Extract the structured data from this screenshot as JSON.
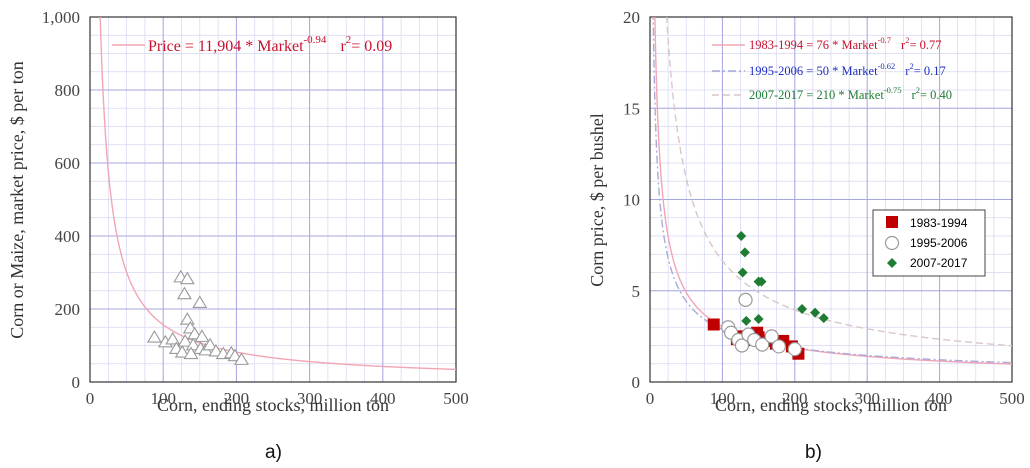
{
  "chart_data": [
    {
      "type": "scatter",
      "panel_label": "a)",
      "xlabel": "Corn, ending stocks, million ton",
      "ylabel": "Corn or Maize, market price, $ per ton",
      "xlim": [
        0,
        500
      ],
      "ylim": [
        0,
        1000
      ],
      "x_ticks": [
        "0",
        "100",
        "200",
        "300",
        "400",
        "500"
      ],
      "y_ticks": [
        "0",
        "200",
        "400",
        "600",
        "800",
        "1,000"
      ],
      "grid": true,
      "series": [
        {
          "marker": "triangle",
          "color": "#999999",
          "points": [
            {
              "x": 88,
              "y": 123
            },
            {
              "x": 103,
              "y": 110
            },
            {
              "x": 113,
              "y": 118
            },
            {
              "x": 118,
              "y": 92
            },
            {
              "x": 124,
              "y": 288
            },
            {
              "x": 129,
              "y": 242
            },
            {
              "x": 133,
              "y": 283
            },
            {
              "x": 130,
              "y": 112
            },
            {
              "x": 126,
              "y": 82
            },
            {
              "x": 133,
              "y": 172
            },
            {
              "x": 137,
              "y": 148
            },
            {
              "x": 141,
              "y": 102
            },
            {
              "x": 143,
              "y": 132
            },
            {
              "x": 150,
              "y": 218
            },
            {
              "x": 153,
              "y": 125
            },
            {
              "x": 151,
              "y": 92
            },
            {
              "x": 158,
              "y": 88
            },
            {
              "x": 164,
              "y": 102
            },
            {
              "x": 172,
              "y": 85
            },
            {
              "x": 182,
              "y": 78
            },
            {
              "x": 193,
              "y": 80
            },
            {
              "x": 198,
              "y": 72
            },
            {
              "x": 207,
              "y": 62
            },
            {
              "x": 138,
              "y": 78
            }
          ]
        }
      ],
      "fit_lines": [
        {
          "label": "Price = 11,904 * Market",
          "exp": "-0.94",
          "r2": "r",
          "r2_sup": "2",
          "r2_rest": "= 0.09",
          "a": 11904,
          "b": -0.94,
          "color": "#c8102e",
          "line_color": "#f2a5b4",
          "dash": "solid"
        }
      ]
    },
    {
      "type": "scatter",
      "panel_label": "b)",
      "xlabel": "Corn, ending stocks, million ton",
      "ylabel": "Corn price, $ per bushel",
      "xlim": [
        0,
        500
      ],
      "ylim": [
        0,
        20
      ],
      "x_ticks": [
        "0",
        "100",
        "200",
        "300",
        "400",
        "500"
      ],
      "y_ticks": [
        "0",
        "5",
        "10",
        "15",
        "20"
      ],
      "grid": true,
      "legend_position": "right-middle",
      "series": [
        {
          "name": "1983-1994",
          "marker": "square",
          "color": "#c00000",
          "points": [
            {
              "x": 88,
              "y": 3.15
            },
            {
              "x": 120,
              "y": 2.35
            },
            {
              "x": 128,
              "y": 2.5
            },
            {
              "x": 137,
              "y": 2.3
            },
            {
              "x": 142,
              "y": 2.6
            },
            {
              "x": 148,
              "y": 2.7
            },
            {
              "x": 150,
              "y": 2.45
            },
            {
              "x": 160,
              "y": 2.25
            },
            {
              "x": 174,
              "y": 2.1
            },
            {
              "x": 184,
              "y": 2.25
            },
            {
              "x": 196,
              "y": 1.95
            },
            {
              "x": 205,
              "y": 1.55
            }
          ]
        },
        {
          "name": "1995-2006",
          "marker": "circle",
          "color": "#9a9a9a",
          "points": [
            {
              "x": 108,
              "y": 3.0
            },
            {
              "x": 112,
              "y": 2.7
            },
            {
              "x": 122,
              "y": 2.3
            },
            {
              "x": 127,
              "y": 2.0
            },
            {
              "x": 132,
              "y": 4.5
            },
            {
              "x": 136,
              "y": 2.6
            },
            {
              "x": 144,
              "y": 2.3
            },
            {
              "x": 155,
              "y": 2.05
            },
            {
              "x": 168,
              "y": 2.5
            },
            {
              "x": 178,
              "y": 1.95
            },
            {
              "x": 200,
              "y": 1.8
            }
          ]
        },
        {
          "name": "2007-2017",
          "marker": "diamond",
          "color": "#1e7d32",
          "points": [
            {
              "x": 126,
              "y": 8.0
            },
            {
              "x": 131,
              "y": 7.1
            },
            {
              "x": 128,
              "y": 6.0
            },
            {
              "x": 150,
              "y": 5.5
            },
            {
              "x": 154,
              "y": 5.5
            },
            {
              "x": 133,
              "y": 3.35
            },
            {
              "x": 150,
              "y": 3.45
            },
            {
              "x": 210,
              "y": 4.0
            },
            {
              "x": 228,
              "y": 3.8
            },
            {
              "x": 240,
              "y": 3.5
            }
          ]
        }
      ],
      "fit_lines": [
        {
          "label": "1983-1994 = 76 * Market",
          "exp": "-0.7",
          "r2": "r",
          "r2_sup": "2",
          "r2_rest": "= 0.77",
          "a": 76,
          "b": -0.7,
          "color": "#c8102e",
          "line_color": "#f2a5b4",
          "dash": "solid"
        },
        {
          "label": "1995-2006 = 50 * Market",
          "exp": "-0.62",
          "r2": "r",
          "r2_sup": "2",
          "r2_rest": "= 0.17",
          "a": 50,
          "b": -0.62,
          "color": "#1f2fbf",
          "line_color": "#a8acd8",
          "dash": "dashdot"
        },
        {
          "label": "2007-2017 = 210 * Market",
          "exp": "-0.75",
          "r2": "r",
          "r2_sup": "2",
          "r2_rest": "= 0.40",
          "a": 210,
          "b": -0.75,
          "color": "#1e7d32",
          "line_color": "#d9c7c7",
          "dash": "dashed"
        }
      ]
    }
  ]
}
